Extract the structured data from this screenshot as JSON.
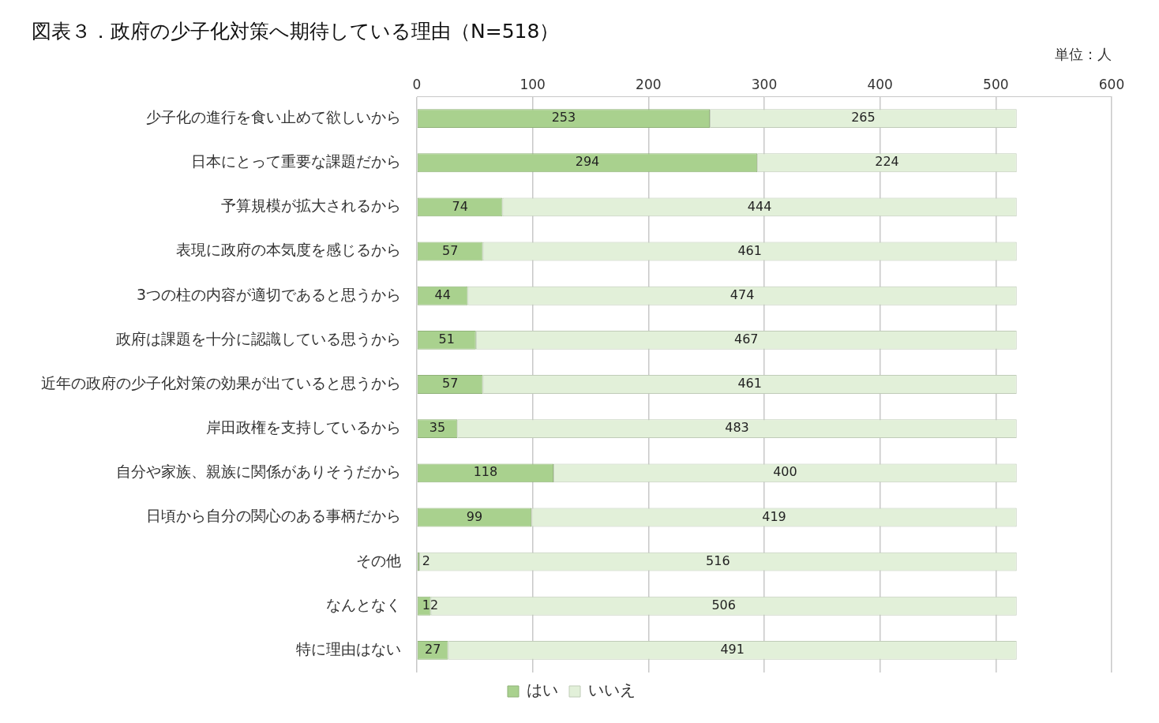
{
  "chart_data": {
    "type": "bar",
    "title": "図表３．政府の少子化対策へ期待している理由（N=518）",
    "subtitle": "単位：人",
    "orientation": "horizontal",
    "stacked": true,
    "data_labels": true,
    "grid": true,
    "legend": "bottom",
    "categories": [
      "少子化の進行を食い止めて欲しいから",
      "日本にとって重要な課題だから",
      "予算規模が拡大されるから",
      "表現に政府の本気度を感じるから",
      "3つの柱の内容が適切であると思うから",
      "政府は課題を十分に認識している思うから",
      "近年の政府の少子化対策の効果が出ていると思うから",
      "岸田政権を支持しているから",
      "自分や家族、親族に関係がありそうだから",
      "日頃から自分の関心のある事柄だから",
      "その他",
      "なんとなく",
      "特に理由はない"
    ],
    "series": [
      {
        "name": "はい",
        "color": "#a9d18e",
        "values": [
          253,
          294,
          74,
          57,
          44,
          51,
          57,
          35,
          118,
          99,
          2,
          12,
          27
        ]
      },
      {
        "name": "いいえ",
        "color": "#e2f0d9",
        "values": [
          265,
          224,
          444,
          461,
          474,
          467,
          461,
          483,
          400,
          419,
          516,
          506,
          491
        ]
      }
    ],
    "xlim": [
      0,
      600
    ],
    "xticks": [
      0,
      100,
      200,
      300,
      400,
      500,
      600
    ]
  }
}
